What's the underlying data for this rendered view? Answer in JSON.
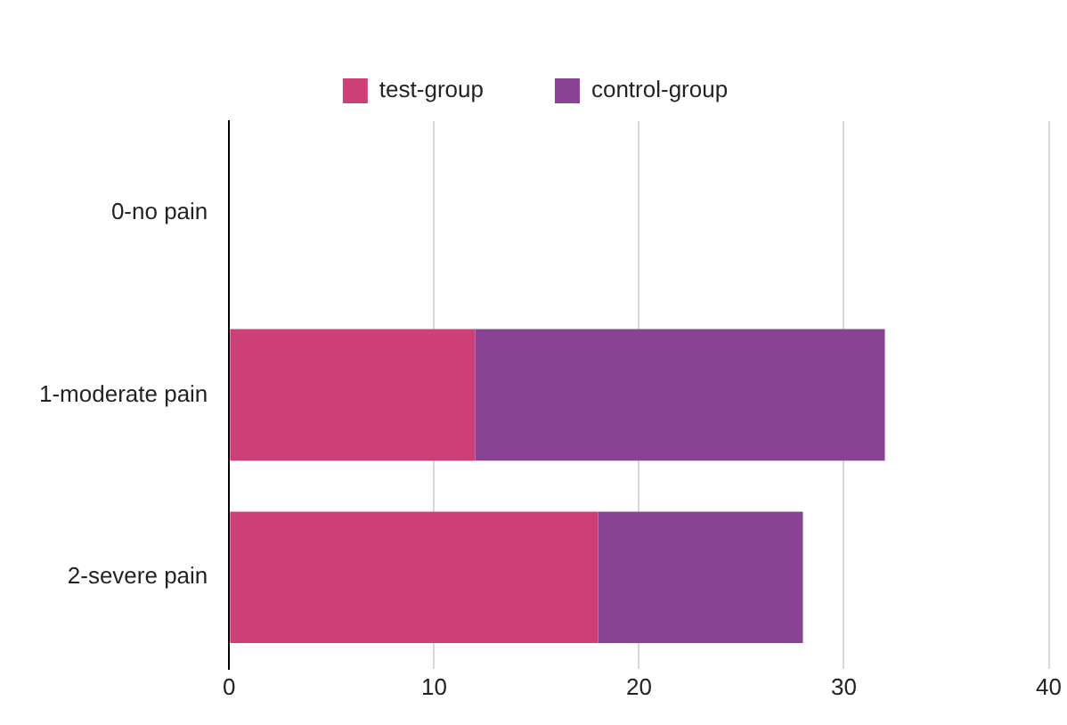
{
  "chart_data": {
    "type": "bar",
    "orientation": "horizontal",
    "stacked": true,
    "categories": [
      "0-no pain",
      "1-moderate pain",
      "2-severe pain"
    ],
    "series": [
      {
        "name": "test-group",
        "color": "#cc4077",
        "values": [
          0,
          12,
          18
        ]
      },
      {
        "name": "control-group",
        "color": "#884493",
        "values": [
          0,
          20,
          10
        ]
      }
    ],
    "xlim": [
      0,
      40
    ],
    "xticks": [
      0,
      10,
      20,
      30,
      40
    ],
    "grid": "x",
    "legend": "top"
  }
}
